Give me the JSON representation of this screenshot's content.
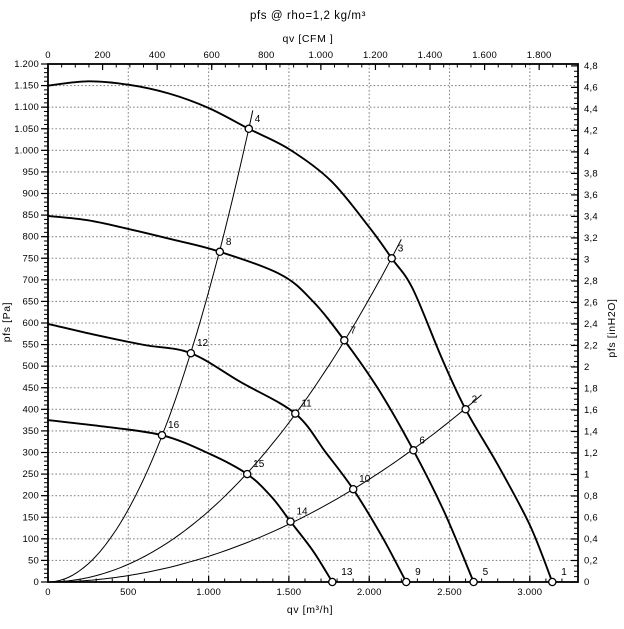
{
  "title": "pfs @ rho=1,2 kg/m³",
  "chart_data": {
    "type": "line",
    "title": "pfs @ rho=1,2 kg/m³",
    "description_labels": {
      "top_axis": "qv [CFM ]",
      "bottom_axis": "qv [m³/h]",
      "left_axis": "pfs [Pa]",
      "right_axis": "pfs [inH2O]"
    },
    "axes": {
      "bottom": {
        "label": "qv [m³/h]",
        "min": 0,
        "max": 3300,
        "major_step": 500,
        "minor_step": 100,
        "tick_labels": [
          "0",
          "500",
          "1.000",
          "1.500",
          "2.000",
          "2.500",
          "3.000"
        ]
      },
      "top": {
        "label": "qv [CFM ]",
        "min": 0,
        "max": 1942,
        "major_step": 200,
        "minor_step": 50,
        "scale_to_bottom": 1.699,
        "tick_labels": [
          "0",
          "200",
          "400",
          "600",
          "800",
          "1.000",
          "1.200",
          "1.400",
          "1.600",
          "1.800"
        ]
      },
      "left": {
        "label": "pfs [Pa]",
        "min": 0,
        "max": 1200,
        "major_step": 50,
        "minor_step": 10,
        "tick_labels": [
          "0",
          "50",
          "100",
          "150",
          "200",
          "250",
          "300",
          "350",
          "400",
          "450",
          "500",
          "550",
          "600",
          "650",
          "700",
          "750",
          "800",
          "850",
          "900",
          "950",
          "1.000",
          "1.050",
          "1.100",
          "1.150",
          "1.200"
        ]
      },
      "right": {
        "label": "pfs [inH2O]",
        "min": 0,
        "max": 4.8,
        "major_step": 0.2,
        "minor_step": 0.05,
        "scale_to_left": 249.089,
        "tick_labels": [
          "0",
          "0,2",
          "0,4",
          "0,6",
          "0,8",
          "1",
          "1,2",
          "1,4",
          "1,6",
          "1,8",
          "2",
          "2,2",
          "2,4",
          "2,6",
          "2,8",
          "3",
          "3,2",
          "3,4",
          "3,6",
          "3,8",
          "4",
          "4,2",
          "4,4",
          "4,6",
          "4,8"
        ]
      }
    },
    "grid": {
      "x_step": 500,
      "y_step": 50,
      "style": "dotted"
    },
    "fan_curves": [
      {
        "name": "fan-curve-speed-1",
        "points": [
          [
            0,
            1150
          ],
          [
            250,
            1160
          ],
          [
            500,
            1152
          ],
          [
            750,
            1132
          ],
          [
            1000,
            1098
          ],
          [
            1250,
            1050
          ],
          [
            1500,
            1003
          ],
          [
            1760,
            930
          ],
          [
            2000,
            822
          ],
          [
            2140,
            750
          ],
          [
            2270,
            680
          ],
          [
            2450,
            520
          ],
          [
            2600,
            400
          ],
          [
            2800,
            272
          ],
          [
            3000,
            132
          ],
          [
            3140,
            0
          ]
        ]
      },
      {
        "name": "fan-curve-speed-2",
        "points": [
          [
            0,
            848
          ],
          [
            250,
            838
          ],
          [
            500,
            818
          ],
          [
            780,
            793
          ],
          [
            1070,
            765
          ],
          [
            1450,
            712
          ],
          [
            1650,
            650
          ],
          [
            1845,
            560
          ],
          [
            2060,
            445
          ],
          [
            2275,
            305
          ],
          [
            2470,
            160
          ],
          [
            2650,
            0
          ]
        ]
      },
      {
        "name": "fan-curve-speed-3",
        "points": [
          [
            0,
            598
          ],
          [
            300,
            572
          ],
          [
            600,
            549
          ],
          [
            890,
            530
          ],
          [
            1200,
            463
          ],
          [
            1540,
            390
          ],
          [
            1730,
            300
          ],
          [
            1900,
            215
          ],
          [
            2080,
            105
          ],
          [
            2230,
            0
          ]
        ]
      },
      {
        "name": "fan-curve-speed-4",
        "points": [
          [
            0,
            375
          ],
          [
            350,
            360
          ],
          [
            710,
            340
          ],
          [
            1000,
            298
          ],
          [
            1240,
            250
          ],
          [
            1390,
            198
          ],
          [
            1510,
            140
          ],
          [
            1650,
            72
          ],
          [
            1770,
            0
          ]
        ]
      }
    ],
    "system_curves": [
      {
        "name": "system-curve-1",
        "k": 0.000672,
        "q_end": 1285,
        "through_points": [
          4,
          8,
          12,
          16
        ]
      },
      {
        "name": "system-curve-2",
        "k": 0.000164,
        "q_end": 2200,
        "through_points": [
          3,
          7,
          11,
          15
        ]
      },
      {
        "name": "system-curve-3",
        "k": 5.95e-05,
        "q_end": 2700,
        "through_points": [
          2,
          6,
          10,
          14
        ]
      }
    ],
    "operating_points": [
      {
        "label": "1",
        "qv": 3140,
        "pfs": 0
      },
      {
        "label": "2",
        "qv": 2600,
        "pfs": 400
      },
      {
        "label": "3",
        "qv": 2140,
        "pfs": 750
      },
      {
        "label": "4",
        "qv": 1250,
        "pfs": 1050
      },
      {
        "label": "5",
        "qv": 2650,
        "pfs": 0
      },
      {
        "label": "6",
        "qv": 2275,
        "pfs": 305
      },
      {
        "label": "7",
        "qv": 1845,
        "pfs": 560
      },
      {
        "label": "8",
        "qv": 1070,
        "pfs": 765
      },
      {
        "label": "9",
        "qv": 2230,
        "pfs": 0
      },
      {
        "label": "10",
        "qv": 1900,
        "pfs": 215
      },
      {
        "label": "11",
        "qv": 1540,
        "pfs": 390
      },
      {
        "label": "12",
        "qv": 890,
        "pfs": 530
      },
      {
        "label": "13",
        "qv": 1770,
        "pfs": 0
      },
      {
        "label": "14",
        "qv": 1510,
        "pfs": 140
      },
      {
        "label": "15",
        "qv": 1240,
        "pfs": 250
      },
      {
        "label": "16",
        "qv": 710,
        "pfs": 340
      }
    ],
    "colors": {
      "curve": "#000000",
      "grid": "#8a8a8a",
      "background": "#ffffff",
      "marker_fill": "#ffffff"
    }
  }
}
